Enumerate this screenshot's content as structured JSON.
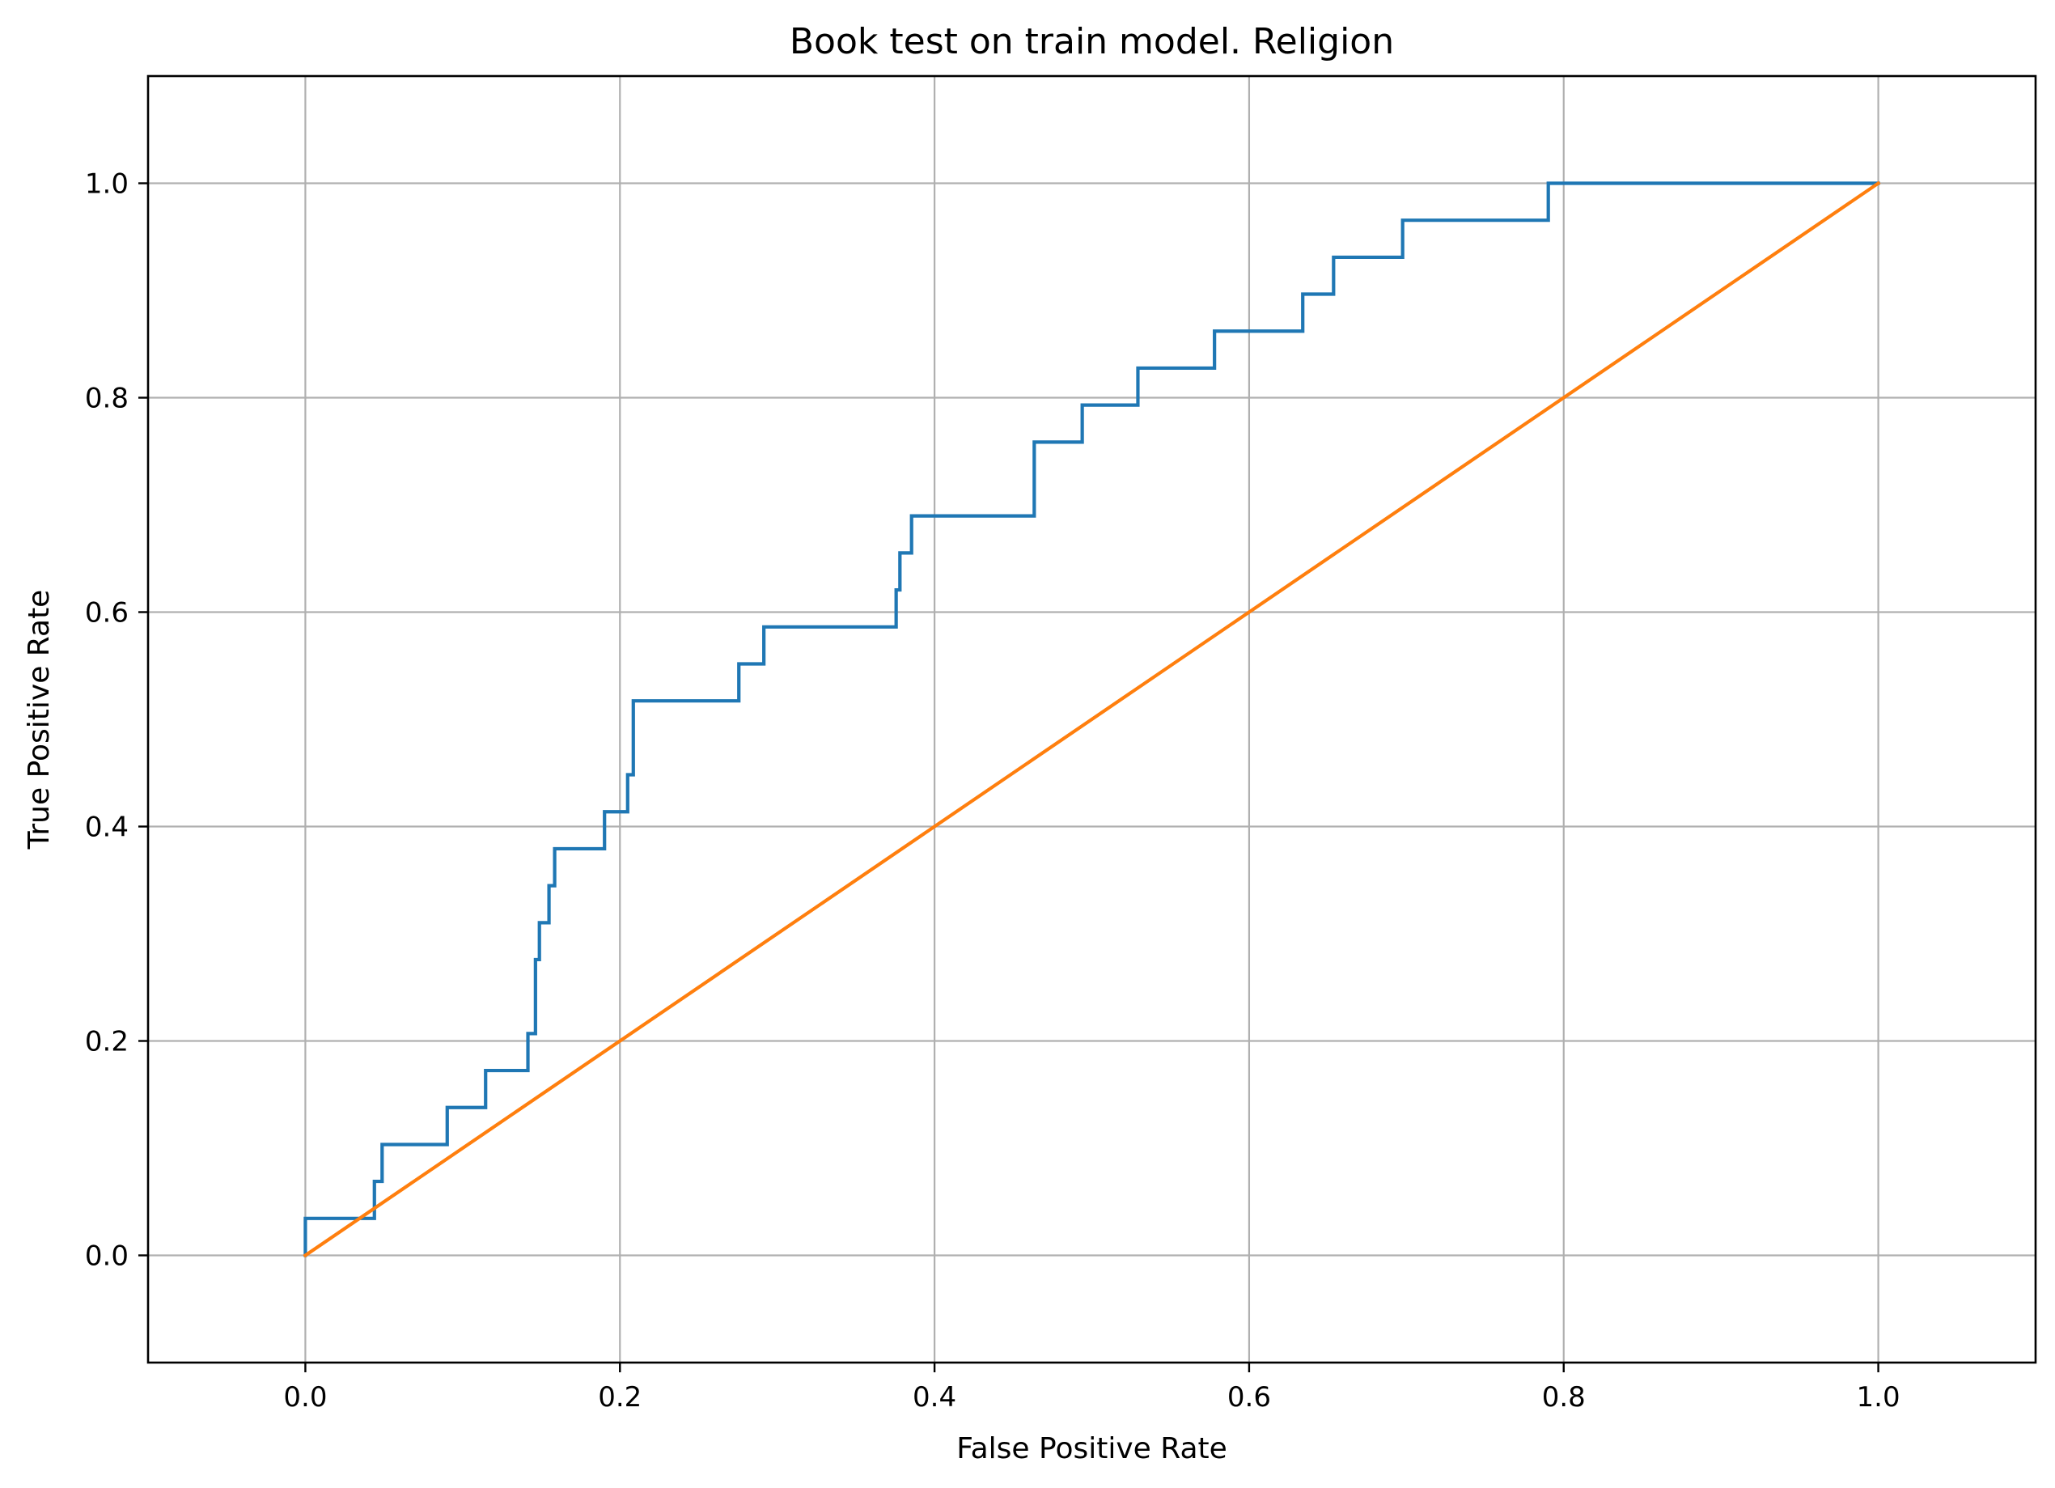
{
  "chart_data": {
    "type": "line",
    "title": "Book test on train model. Religion",
    "xlabel": "False Positive Rate",
    "ylabel": "True Positive Rate",
    "xlim": [
      -0.1,
      1.1
    ],
    "ylim": [
      -0.1,
      1.1
    ],
    "x_ticks": [
      0.0,
      0.2,
      0.4,
      0.6,
      0.8,
      1.0
    ],
    "y_ticks": [
      0.0,
      0.2,
      0.4,
      0.6,
      0.8,
      1.0
    ],
    "x_tick_labels": [
      "0.0",
      "0.2",
      "0.4",
      "0.6",
      "0.8",
      "1.0"
    ],
    "y_tick_labels": [
      "0.0",
      "0.2",
      "0.4",
      "0.6",
      "0.8",
      "1.0"
    ],
    "grid": true,
    "legend": "none",
    "series": [
      {
        "color": "#1f77b4",
        "drawstyle": "steps",
        "x": [
          0.0,
          0.0,
          0.0439,
          0.0439,
          0.0488,
          0.0488,
          0.0902,
          0.0902,
          0.1146,
          0.1146,
          0.1415,
          0.1415,
          0.1463,
          0.1463,
          0.1488,
          0.1488,
          0.1549,
          0.1549,
          0.1585,
          0.1585,
          0.1902,
          0.1902,
          0.2049,
          0.2049,
          0.2085,
          0.2085,
          0.2756,
          0.2756,
          0.2915,
          0.2915,
          0.3756,
          0.3756,
          0.378,
          0.378,
          0.3854,
          0.3854,
          0.4634,
          0.4634,
          0.4939,
          0.4939,
          0.5293,
          0.5293,
          0.578,
          0.578,
          0.6341,
          0.6341,
          0.6537,
          0.6537,
          0.6976,
          0.6976,
          0.7902,
          0.7902,
          1.0
        ],
        "y": [
          0.0,
          0.0345,
          0.0345,
          0.069,
          0.069,
          0.1034,
          0.1034,
          0.1379,
          0.1379,
          0.1724,
          0.1724,
          0.2069,
          0.2069,
          0.2759,
          0.2759,
          0.3103,
          0.3103,
          0.3448,
          0.3448,
          0.3793,
          0.3793,
          0.4138,
          0.4138,
          0.4483,
          0.4483,
          0.5172,
          0.5172,
          0.5517,
          0.5517,
          0.5862,
          0.5862,
          0.6207,
          0.6207,
          0.6552,
          0.6552,
          0.6897,
          0.6897,
          0.7586,
          0.7586,
          0.7931,
          0.7931,
          0.8276,
          0.8276,
          0.8621,
          0.8621,
          0.8966,
          0.8966,
          0.931,
          0.931,
          0.9655,
          0.9655,
          1.0,
          1.0
        ]
      },
      {
        "color": "#ff7f0e",
        "drawstyle": "line",
        "x": [
          0.0,
          1.0
        ],
        "y": [
          0.0,
          1.0
        ]
      }
    ]
  }
}
